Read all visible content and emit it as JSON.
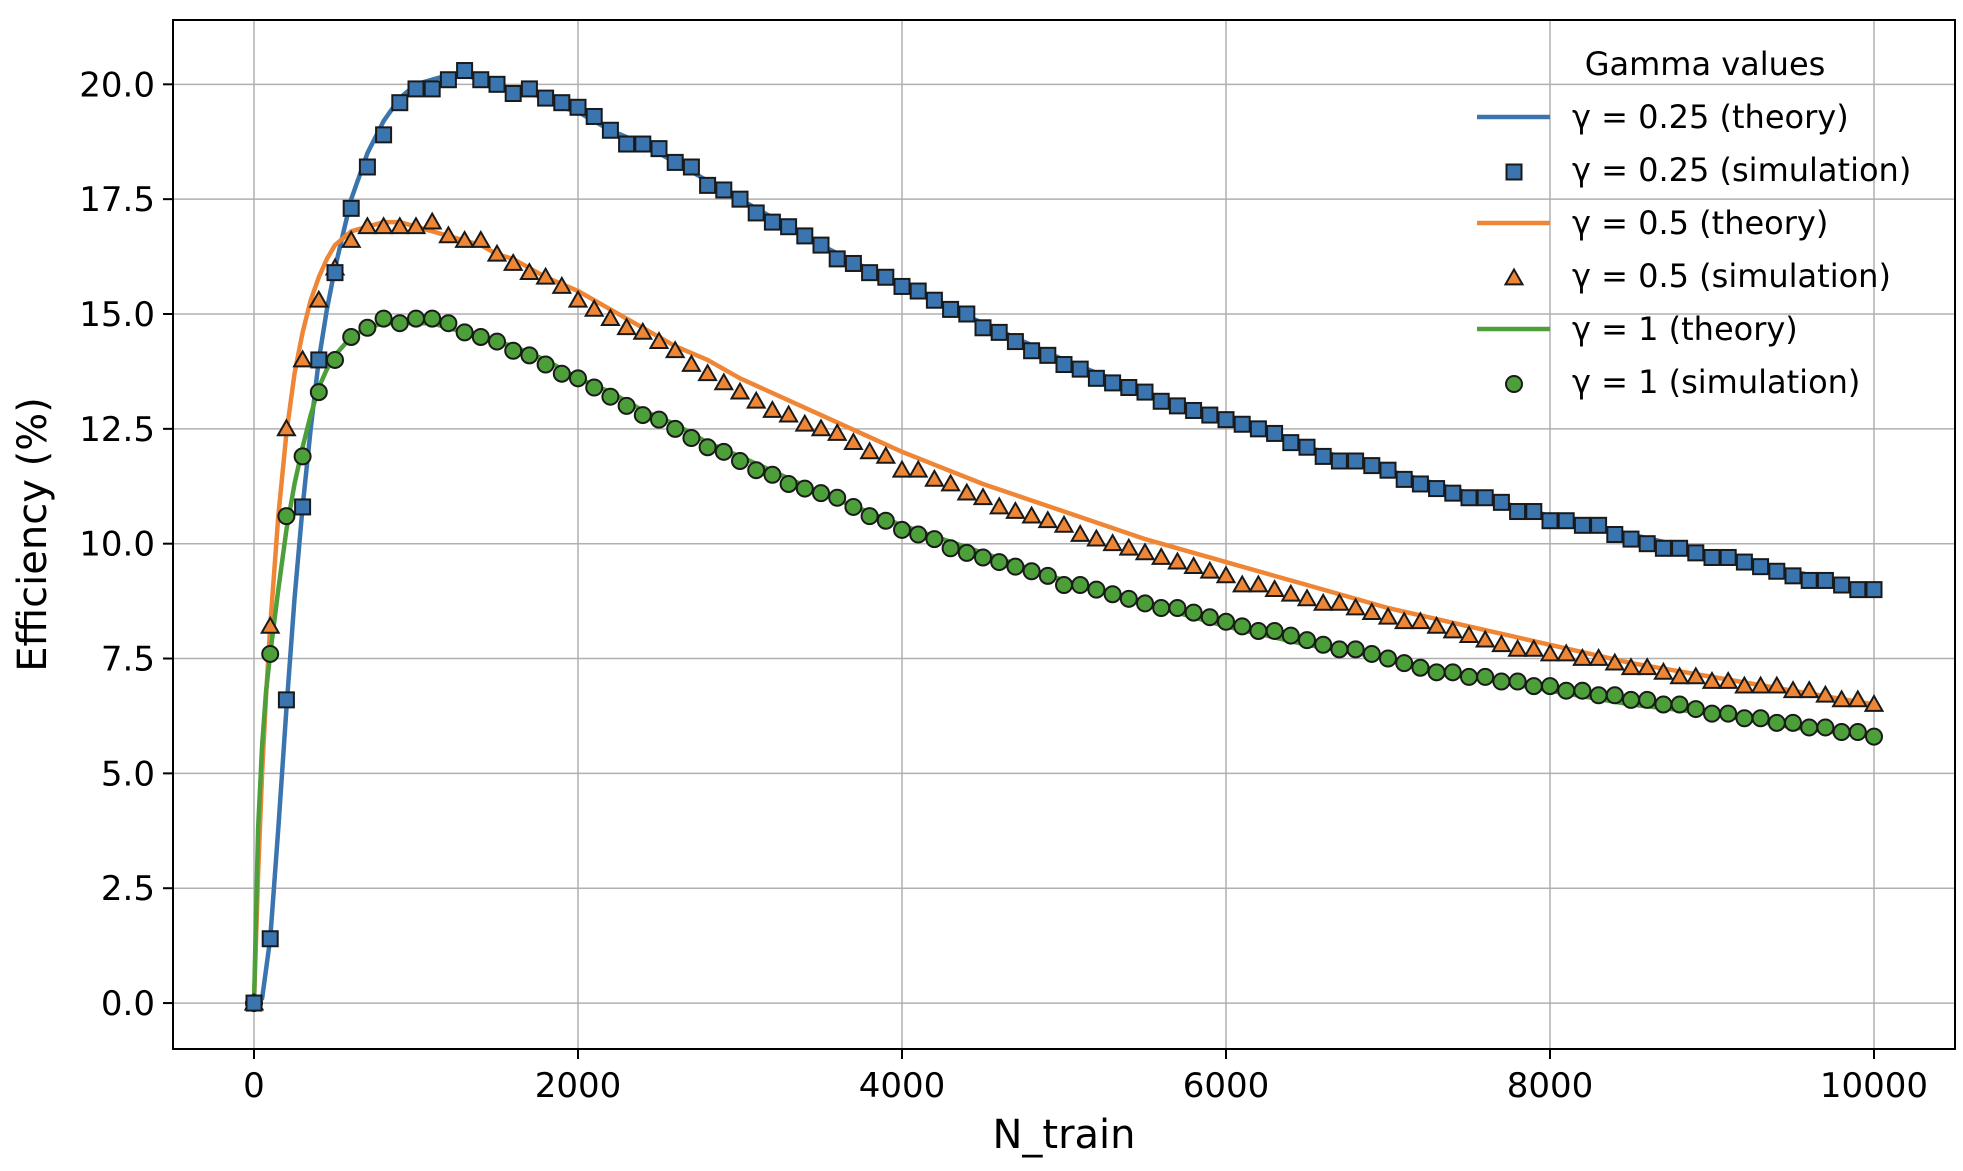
{
  "chart_data": {
    "type": "line",
    "title": "",
    "xlabel": "N_train",
    "ylabel": "Efficiency (%)",
    "xlim": [
      -500,
      10500
    ],
    "ylim": [
      -1.0,
      21.4
    ],
    "x_ticks": [
      0,
      2000,
      4000,
      6000,
      8000,
      10000
    ],
    "x_tick_labels": [
      "0",
      "2000",
      "4000",
      "6000",
      "8000",
      "10000"
    ],
    "y_ticks": [
      0.0,
      2.5,
      5.0,
      7.5,
      10.0,
      12.5,
      15.0,
      17.5,
      20.0
    ],
    "y_tick_labels": [
      "0.0",
      "2.5",
      "5.0",
      "7.5",
      "10.0",
      "12.5",
      "15.0",
      "17.5",
      "20.0"
    ],
    "grid": true,
    "legend": {
      "title": "Gamma values",
      "placement": "top-right",
      "entries": [
        "γ = 0.25 (theory)",
        "γ = 0.25 (simulation)",
        "γ = 0.5 (theory)",
        "γ = 0.5 (simulation)",
        "γ = 1 (theory)",
        "γ = 1 (simulation)"
      ]
    },
    "x": [
      0,
      100,
      200,
      300,
      400,
      500,
      600,
      700,
      800,
      900,
      1000,
      1100,
      1200,
      1300,
      1400,
      1500,
      1600,
      1700,
      1800,
      1900,
      2000,
      2100,
      2200,
      2300,
      2400,
      2500,
      2600,
      2700,
      2800,
      2900,
      3000,
      3100,
      3200,
      3300,
      3400,
      3500,
      3600,
      3700,
      3800,
      3900,
      4000,
      4100,
      4200,
      4300,
      4400,
      4500,
      4600,
      4700,
      4800,
      4900,
      5000,
      5100,
      5200,
      5300,
      5400,
      5500,
      5600,
      5700,
      5800,
      5900,
      6000,
      6100,
      6200,
      6300,
      6400,
      6500,
      6600,
      6700,
      6800,
      6900,
      7000,
      7100,
      7200,
      7300,
      7400,
      7500,
      7600,
      7700,
      7800,
      7900,
      8000,
      8100,
      8200,
      8300,
      8400,
      8500,
      8600,
      8700,
      8800,
      8900,
      9000,
      9100,
      9200,
      9300,
      9400,
      9500,
      9600,
      9700,
      9800,
      9900,
      10000
    ],
    "series": [
      {
        "name": "γ = 0.25 (simulation)",
        "gamma": 0.25,
        "kind": "simulation",
        "marker": "square",
        "color": "#3a75b0",
        "values": [
          0.0,
          1.4,
          6.6,
          10.8,
          14.0,
          15.9,
          17.3,
          18.2,
          18.9,
          19.6,
          19.9,
          19.9,
          20.1,
          20.3,
          20.1,
          20.0,
          19.8,
          19.9,
          19.7,
          19.6,
          19.5,
          19.3,
          19.0,
          18.7,
          18.7,
          18.6,
          18.3,
          18.2,
          17.8,
          17.7,
          17.5,
          17.2,
          17.0,
          16.9,
          16.7,
          16.5,
          16.2,
          16.1,
          15.9,
          15.8,
          15.6,
          15.5,
          15.3,
          15.1,
          15.0,
          14.7,
          14.6,
          14.4,
          14.2,
          14.1,
          13.9,
          13.8,
          13.6,
          13.5,
          13.4,
          13.3,
          13.1,
          13.0,
          12.9,
          12.8,
          12.7,
          12.6,
          12.5,
          12.4,
          12.2,
          12.1,
          11.9,
          11.8,
          11.8,
          11.7,
          11.6,
          11.4,
          11.3,
          11.2,
          11.1,
          11.0,
          11.0,
          10.9,
          10.7,
          10.7,
          10.5,
          10.5,
          10.4,
          10.4,
          10.2,
          10.1,
          10.0,
          9.9,
          9.9,
          9.8,
          9.7,
          9.7,
          9.6,
          9.5,
          9.4,
          9.3,
          9.2,
          9.2,
          9.1,
          9.0,
          9.0
        ]
      },
      {
        "name": "γ = 0.5 (simulation)",
        "gamma": 0.5,
        "kind": "simulation",
        "marker": "triangle",
        "color": "#ef8636",
        "values": [
          0.0,
          8.2,
          12.5,
          14.0,
          15.3,
          16.0,
          16.6,
          16.9,
          16.9,
          16.9,
          16.9,
          17.0,
          16.7,
          16.6,
          16.6,
          16.3,
          16.1,
          15.9,
          15.8,
          15.6,
          15.3,
          15.1,
          14.9,
          14.7,
          14.6,
          14.4,
          14.2,
          13.9,
          13.7,
          13.5,
          13.3,
          13.1,
          12.9,
          12.8,
          12.6,
          12.5,
          12.4,
          12.2,
          12.0,
          11.9,
          11.6,
          11.6,
          11.4,
          11.3,
          11.1,
          11.0,
          10.8,
          10.7,
          10.6,
          10.5,
          10.4,
          10.2,
          10.1,
          10.0,
          9.9,
          9.8,
          9.7,
          9.6,
          9.5,
          9.4,
          9.3,
          9.1,
          9.1,
          9.0,
          8.9,
          8.8,
          8.7,
          8.7,
          8.6,
          8.5,
          8.4,
          8.3,
          8.3,
          8.2,
          8.1,
          8.0,
          7.9,
          7.8,
          7.7,
          7.7,
          7.6,
          7.6,
          7.5,
          7.5,
          7.4,
          7.3,
          7.3,
          7.2,
          7.1,
          7.1,
          7.0,
          7.0,
          6.9,
          6.9,
          6.9,
          6.8,
          6.8,
          6.7,
          6.6,
          6.6,
          6.5
        ]
      },
      {
        "name": "γ = 1 (simulation)",
        "gamma": 1,
        "kind": "simulation",
        "marker": "circle",
        "color": "#4d9f3a",
        "values": [
          0.0,
          7.6,
          10.6,
          11.9,
          13.3,
          14.0,
          14.5,
          14.7,
          14.9,
          14.8,
          14.9,
          14.9,
          14.8,
          14.6,
          14.5,
          14.4,
          14.2,
          14.1,
          13.9,
          13.7,
          13.6,
          13.4,
          13.2,
          13.0,
          12.8,
          12.7,
          12.5,
          12.3,
          12.1,
          12.0,
          11.8,
          11.6,
          11.5,
          11.3,
          11.2,
          11.1,
          11.0,
          10.8,
          10.6,
          10.5,
          10.3,
          10.2,
          10.1,
          9.9,
          9.8,
          9.7,
          9.6,
          9.5,
          9.4,
          9.3,
          9.1,
          9.1,
          9.0,
          8.9,
          8.8,
          8.7,
          8.6,
          8.6,
          8.5,
          8.4,
          8.3,
          8.2,
          8.1,
          8.1,
          8.0,
          7.9,
          7.8,
          7.7,
          7.7,
          7.6,
          7.5,
          7.4,
          7.3,
          7.2,
          7.2,
          7.1,
          7.1,
          7.0,
          7.0,
          6.9,
          6.9,
          6.8,
          6.8,
          6.7,
          6.7,
          6.6,
          6.6,
          6.5,
          6.5,
          6.4,
          6.3,
          6.3,
          6.2,
          6.2,
          6.1,
          6.1,
          6.0,
          6.0,
          5.9,
          5.9,
          5.8
        ]
      },
      {
        "name": "γ = 0.25 (theory)",
        "gamma": 0.25,
        "kind": "theory",
        "color": "#3a75b0",
        "x": [
          0,
          50,
          100,
          150,
          200,
          250,
          300,
          350,
          400,
          450,
          500,
          600,
          700,
          800,
          900,
          1000,
          1100,
          1200,
          1300,
          1400,
          1500,
          1600,
          1700,
          1800,
          1900,
          2000,
          2200,
          2400,
          2600,
          2800,
          3000,
          3500,
          4000,
          4500,
          5000,
          5500,
          6000,
          6500,
          7000,
          7500,
          8000,
          8500,
          9000,
          9500,
          10000
        ],
        "values": [
          0.0,
          0.1,
          1.4,
          3.8,
          6.4,
          8.8,
          10.8,
          12.5,
          14.0,
          15.1,
          16.0,
          17.5,
          18.5,
          19.2,
          19.7,
          20.0,
          20.1,
          20.2,
          20.2,
          20.1,
          20.0,
          19.9,
          19.8,
          19.7,
          19.5,
          19.4,
          19.0,
          18.7,
          18.3,
          17.9,
          17.5,
          16.5,
          15.6,
          14.8,
          14.0,
          13.3,
          12.7,
          12.1,
          11.6,
          11.1,
          10.6,
          10.2,
          9.8,
          9.4,
          9.0
        ]
      },
      {
        "name": "γ = 0.5 (theory)",
        "gamma": 0.5,
        "kind": "theory",
        "color": "#ef8636",
        "x": [
          0,
          25,
          50,
          75,
          100,
          150,
          200,
          250,
          300,
          350,
          400,
          450,
          500,
          600,
          700,
          800,
          900,
          1000,
          1100,
          1200,
          1300,
          1400,
          1500,
          1600,
          1800,
          2000,
          2200,
          2400,
          2600,
          2800,
          3000,
          3500,
          4000,
          4500,
          5000,
          5500,
          6000,
          6500,
          7000,
          7500,
          8000,
          8500,
          9000,
          9500,
          10000
        ],
        "values": [
          0.0,
          2.8,
          5.0,
          6.7,
          8.2,
          10.6,
          12.4,
          13.7,
          14.6,
          15.3,
          15.8,
          16.2,
          16.5,
          16.8,
          16.9,
          17.0,
          17.0,
          16.9,
          16.8,
          16.7,
          16.6,
          16.5,
          16.3,
          16.2,
          15.8,
          15.5,
          15.1,
          14.7,
          14.3,
          14.0,
          13.6,
          12.8,
          12.0,
          11.3,
          10.7,
          10.1,
          9.6,
          9.1,
          8.6,
          8.2,
          7.8,
          7.4,
          7.1,
          6.8,
          6.5
        ]
      },
      {
        "name": "γ = 1 (theory)",
        "gamma": 1,
        "kind": "theory",
        "color": "#4d9f3a",
        "x": [
          0,
          25,
          50,
          75,
          100,
          150,
          200,
          250,
          300,
          350,
          400,
          450,
          500,
          600,
          700,
          800,
          900,
          1000,
          1100,
          1200,
          1300,
          1400,
          1500,
          1600,
          1800,
          2000,
          2200,
          2400,
          2600,
          2800,
          3000,
          3500,
          4000,
          4500,
          5000,
          5500,
          6000,
          6500,
          7000,
          7500,
          8000,
          8500,
          9000,
          9500,
          10000
        ],
        "values": [
          0.0,
          3.8,
          5.6,
          6.8,
          7.6,
          9.0,
          10.3,
          11.3,
          12.1,
          12.8,
          13.4,
          13.8,
          14.1,
          14.5,
          14.7,
          14.8,
          14.8,
          14.8,
          14.8,
          14.7,
          14.6,
          14.5,
          14.4,
          14.3,
          14.0,
          13.6,
          13.3,
          12.9,
          12.6,
          12.2,
          11.9,
          11.1,
          10.4,
          9.8,
          9.2,
          8.7,
          8.2,
          7.8,
          7.5,
          7.1,
          6.8,
          6.5,
          6.3,
          6.0,
          5.8
        ]
      }
    ]
  }
}
